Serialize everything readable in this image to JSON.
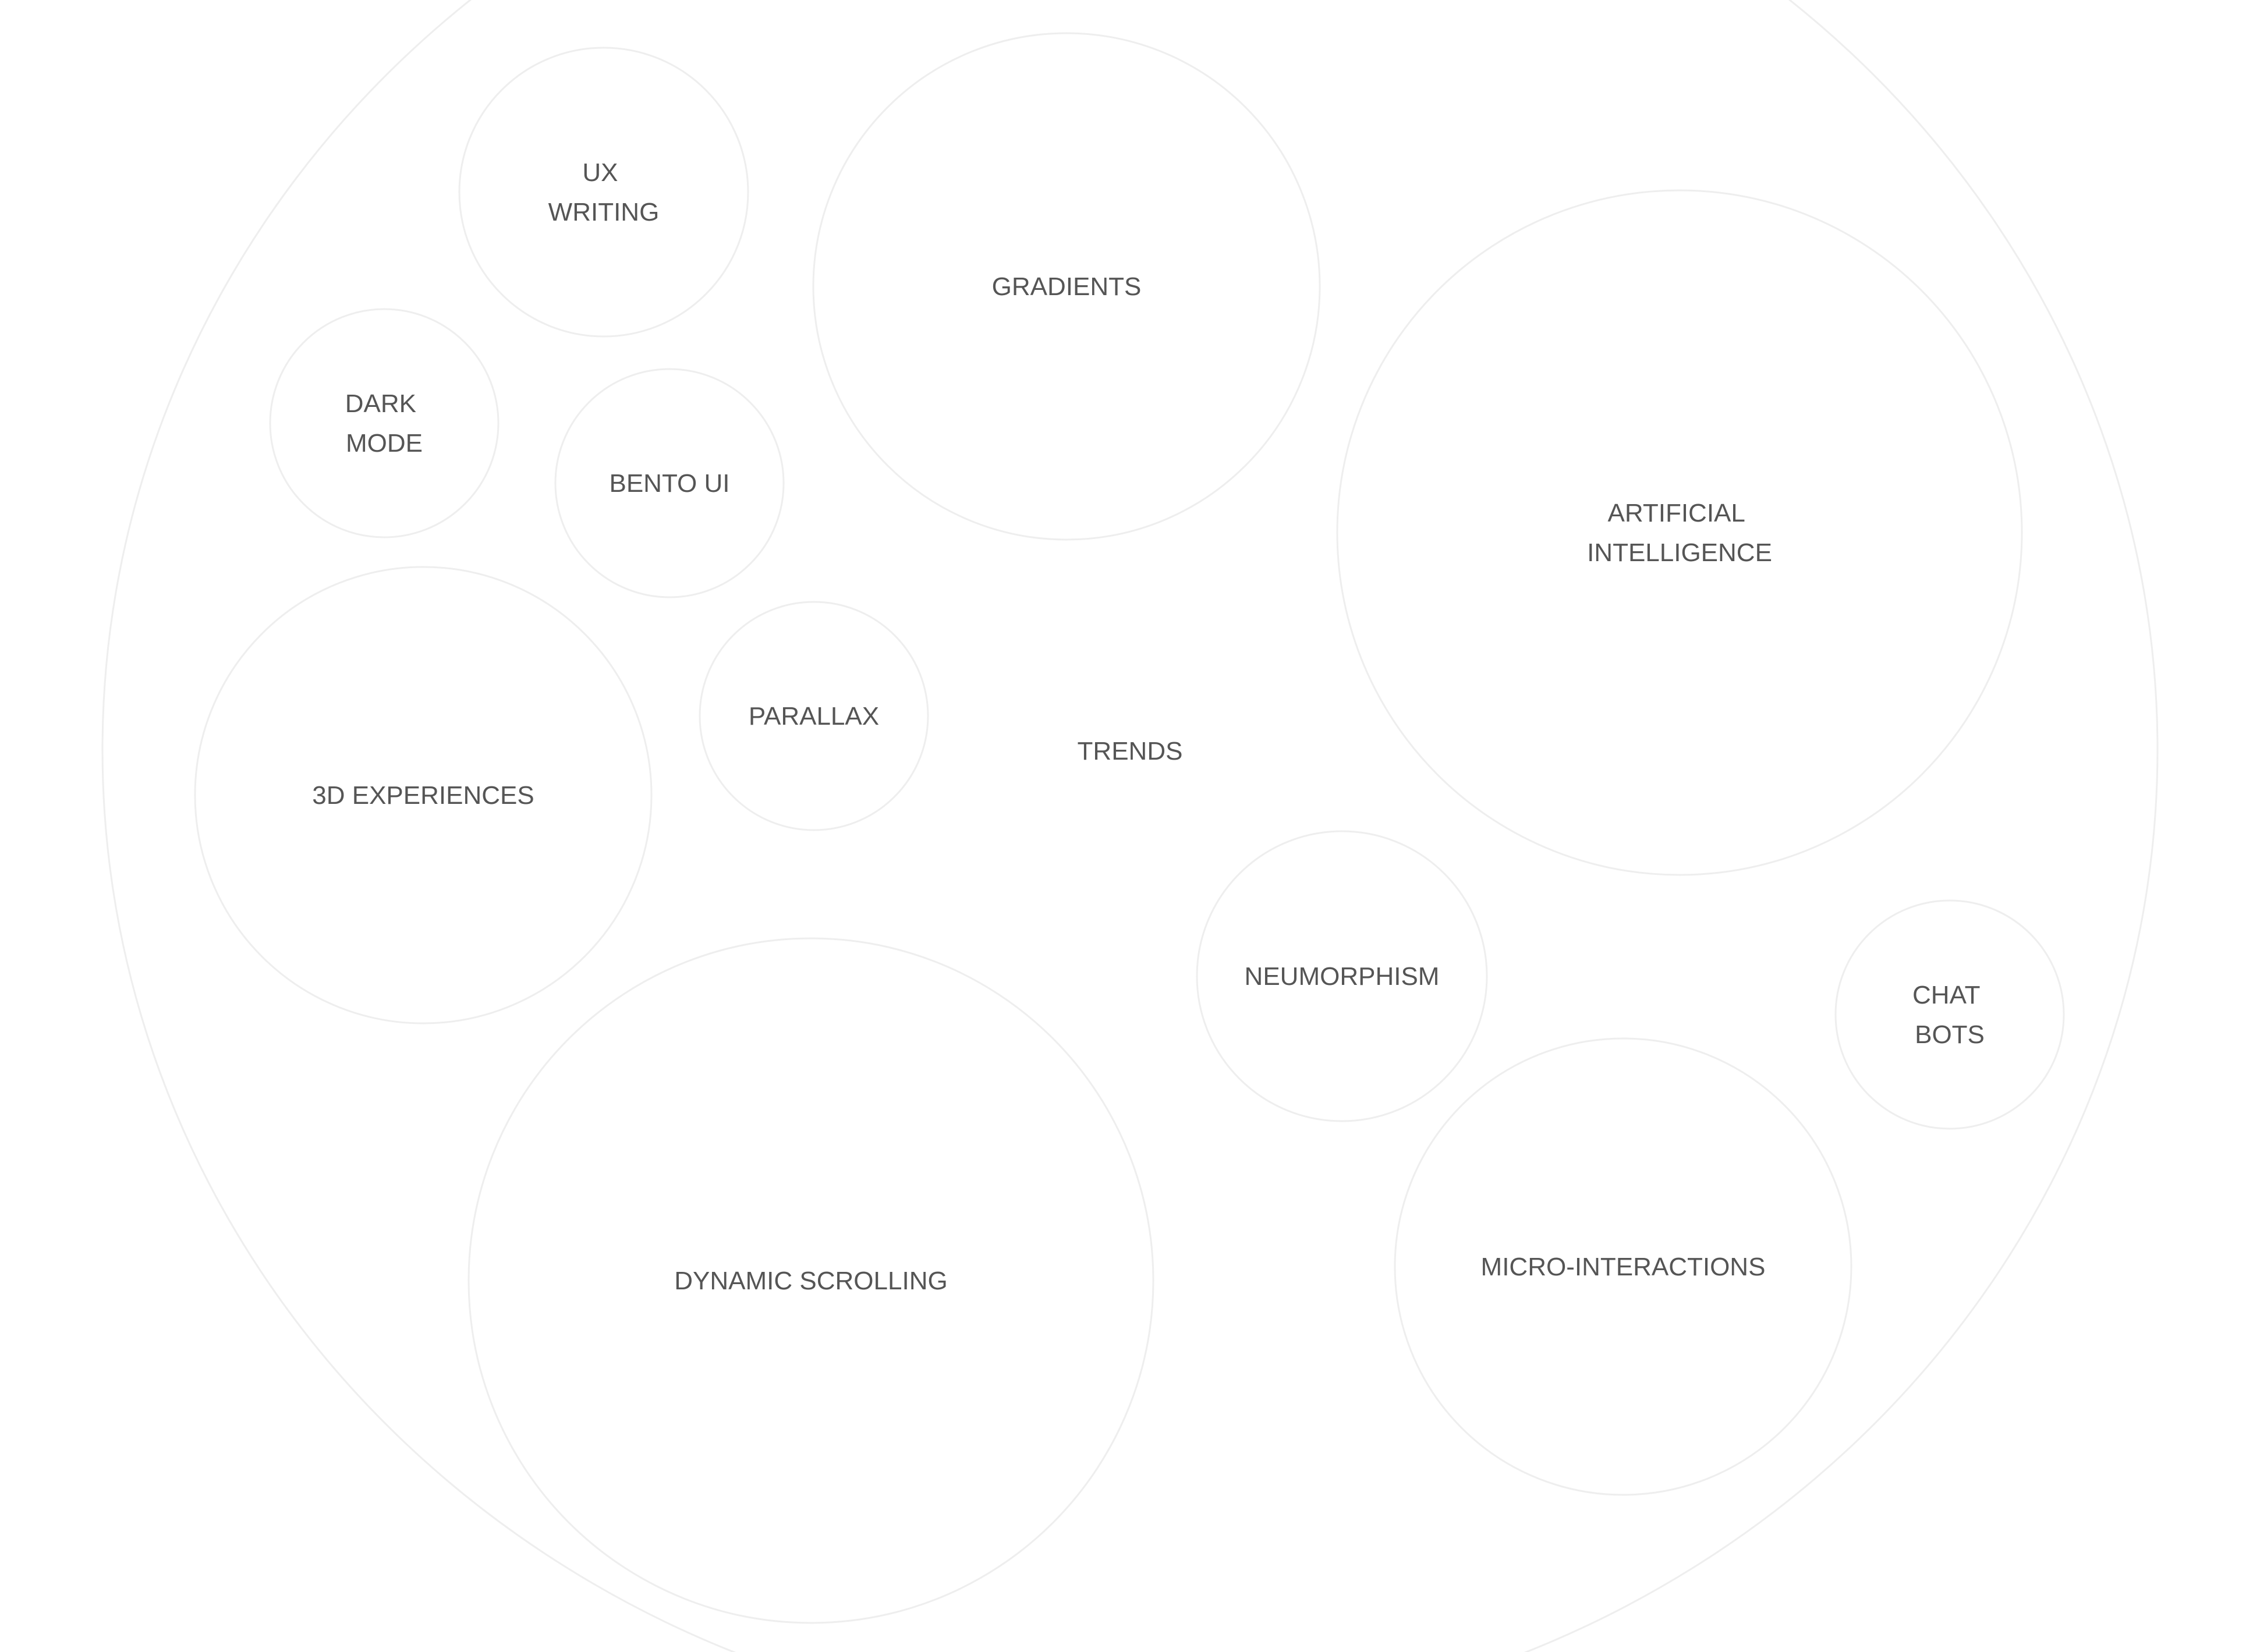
{
  "diagram": {
    "root": {
      "label": "TRENDS",
      "stroke_color": "#eeeeee"
    },
    "label_color": "#555555",
    "bubbles": [
      {
        "id": "ux-writing",
        "lines": [
          "UX",
          "WRITING"
        ]
      },
      {
        "id": "gradients",
        "lines": [
          "GRADIENTS"
        ]
      },
      {
        "id": "dark-mode",
        "lines": [
          "DARK",
          "MODE"
        ]
      },
      {
        "id": "bento-ui",
        "lines": [
          "BENTO UI"
        ]
      },
      {
        "id": "artificial-intelligence",
        "lines": [
          "ARTIFICIAL",
          "INTELLIGENCE"
        ]
      },
      {
        "id": "3d-experiences",
        "lines": [
          "3D EXPERIENCES"
        ]
      },
      {
        "id": "parallax",
        "lines": [
          "PARALLAX"
        ]
      },
      {
        "id": "neumorphism",
        "lines": [
          "NEUMORPHISM"
        ]
      },
      {
        "id": "chat-bots",
        "lines": [
          "CHAT",
          "BOTS"
        ]
      },
      {
        "id": "dynamic-scrolling",
        "lines": [
          "DYNAMIC SCROLLING"
        ]
      },
      {
        "id": "micro-interactions",
        "lines": [
          "MICRO-INTERACTIONS"
        ]
      }
    ]
  }
}
